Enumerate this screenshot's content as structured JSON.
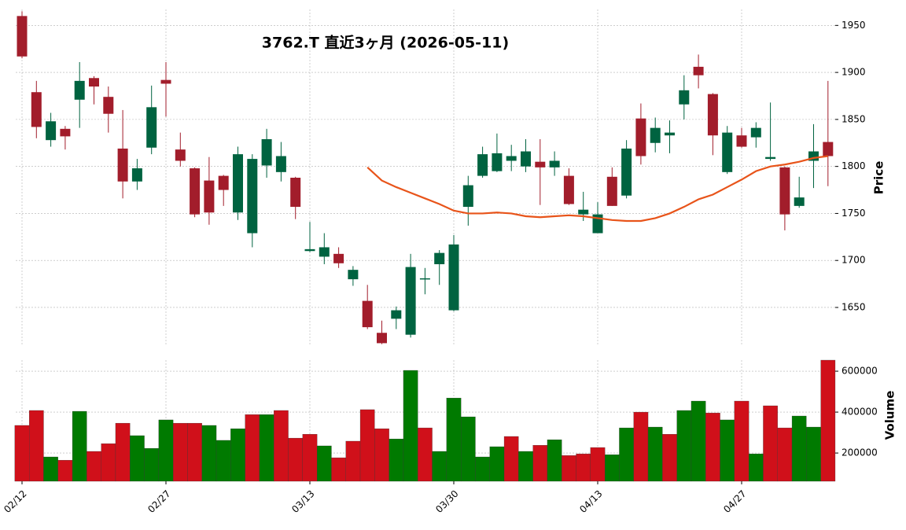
{
  "chart_data": {
    "type": "candlestick",
    "title": "3762.T  直近3ヶ月 (2026-05-11)",
    "y_label": "Price",
    "volume_label": "Volume",
    "categories": [
      "02/12",
      null,
      null,
      null,
      null,
      null,
      null,
      null,
      null,
      null,
      "02/27",
      null,
      null,
      null,
      null,
      null,
      null,
      null,
      null,
      null,
      "03/13",
      null,
      null,
      null,
      null,
      null,
      null,
      null,
      null,
      null,
      "03/30",
      null,
      null,
      null,
      null,
      null,
      null,
      null,
      null,
      null,
      "04/13",
      null,
      null,
      null,
      null,
      null,
      null,
      null,
      null,
      null,
      "04/27",
      null,
      null,
      null,
      null,
      null,
      null
    ],
    "open": [
      1960,
      1879,
      1828,
      1840,
      1871,
      1894,
      1874,
      1819,
      1784,
      1820,
      1892,
      1818,
      1798,
      1785,
      1790,
      1751,
      1729,
      1801,
      1794,
      1788,
      1710,
      1704,
      1707,
      1680,
      1657,
      1623,
      1638,
      1621,
      1680,
      1696,
      1647,
      1757,
      1790,
      1795,
      1806,
      1800,
      1805,
      1799,
      1790,
      1749,
      1729,
      1789,
      1769,
      1851,
      1825,
      1833,
      1866,
      1906,
      1877,
      1794,
      1833,
      1831,
      1808,
      1799,
      1758,
      1806,
      1826
    ],
    "high": [
      1965,
      1891,
      1857,
      1843,
      1911,
      1896,
      1885,
      1860,
      1808,
      1886,
      1911,
      1836,
      1799,
      1810,
      1791,
      1821,
      1813,
      1840,
      1826,
      1789,
      1741,
      1729,
      1714,
      1694,
      1674,
      1636,
      1651,
      1707,
      1692,
      1711,
      1727,
      1790,
      1821,
      1835,
      1823,
      1829,
      1829,
      1816,
      1798,
      1773,
      1762,
      1799,
      1828,
      1867,
      1852,
      1849,
      1897,
      1919,
      1878,
      1843,
      1841,
      1847,
      1868,
      1800,
      1789,
      1845,
      1891
    ],
    "low": [
      1915,
      1830,
      1821,
      1818,
      1841,
      1866,
      1836,
      1766,
      1775,
      1813,
      1853,
      1800,
      1746,
      1738,
      1758,
      1743,
      1714,
      1788,
      1784,
      1744,
      1709,
      1696,
      1692,
      1673,
      1627,
      1611,
      1627,
      1618,
      1664,
      1674,
      1646,
      1737,
      1788,
      1794,
      1795,
      1794,
      1759,
      1790,
      1759,
      1742,
      1729,
      1758,
      1766,
      1802,
      1815,
      1814,
      1850,
      1883,
      1812,
      1792,
      1820,
      1820,
      1806,
      1732,
      1756,
      1777,
      1779
    ],
    "close": [
      1917,
      1842,
      1848,
      1832,
      1891,
      1885,
      1856,
      1784,
      1798,
      1863,
      1888,
      1806,
      1749,
      1751,
      1775,
      1813,
      1808,
      1829,
      1811,
      1757,
      1712,
      1714,
      1697,
      1690,
      1629,
      1612,
      1647,
      1693,
      1681,
      1708,
      1717,
      1780,
      1813,
      1814,
      1811,
      1816,
      1799,
      1806,
      1760,
      1754,
      1749,
      1758,
      1819,
      1811,
      1841,
      1836,
      1881,
      1897,
      1833,
      1836,
      1821,
      1841,
      1810,
      1749,
      1767,
      1816,
      1811
    ],
    "up_color": "#006340",
    "down_color": "#a21d2b",
    "ma": {
      "color": "#e8541a",
      "values": [
        null,
        null,
        null,
        null,
        null,
        null,
        null,
        null,
        null,
        null,
        null,
        null,
        null,
        null,
        null,
        null,
        null,
        null,
        null,
        null,
        null,
        null,
        null,
        null,
        1799,
        1785,
        1778,
        1772,
        1766,
        1760,
        1753,
        1750,
        1750,
        1751,
        1750,
        1747,
        1746,
        1747,
        1748,
        1747,
        1745,
        1743,
        1742,
        1742,
        1745,
        1750,
        1757,
        1765,
        1770,
        1778,
        1786,
        1795,
        1800,
        1802,
        1805,
        1809,
        1811
      ]
    },
    "volume": {
      "values": [
        335000,
        408000,
        181000,
        165000,
        404000,
        208000,
        246000,
        346000,
        285000,
        223000,
        362000,
        346000,
        346000,
        335000,
        262000,
        319000,
        388000,
        388000,
        408000,
        273000,
        292000,
        235000,
        177000,
        258000,
        412000,
        319000,
        269000,
        604000,
        323000,
        208000,
        469000,
        377000,
        181000,
        231000,
        281000,
        208000,
        238000,
        265000,
        188000,
        196000,
        227000,
        192000,
        323000,
        400000,
        327000,
        292000,
        408000,
        454000,
        396000,
        362000,
        454000,
        196000,
        431000,
        323000,
        381000,
        327000,
        654000
      ],
      "colors": [
        "#d0101a",
        "#d0101a",
        "#007a00",
        "#d0101a",
        "#007a00",
        "#d0101a",
        "#d0101a",
        "#d0101a",
        "#007a00",
        "#007a00",
        "#007a00",
        "#d0101a",
        "#d0101a",
        "#007a00",
        "#007a00",
        "#007a00",
        "#d0101a",
        "#007a00",
        "#d0101a",
        "#d0101a",
        "#d0101a",
        "#007a00",
        "#d0101a",
        "#d0101a",
        "#d0101a",
        "#d0101a",
        "#007a00",
        "#007a00",
        "#d0101a",
        "#007a00",
        "#007a00",
        "#007a00",
        "#007a00",
        "#007a00",
        "#d0101a",
        "#007a00",
        "#d0101a",
        "#007a00",
        "#d0101a",
        "#d0101a",
        "#d0101a",
        "#007a00",
        "#007a00",
        "#d0101a",
        "#007a00",
        "#d0101a",
        "#007a00",
        "#007a00",
        "#d0101a",
        "#007a00",
        "#d0101a",
        "#007a00",
        "#d0101a",
        "#d0101a",
        "#007a00",
        "#007a00",
        "#d0101a"
      ]
    },
    "ylim": [
      1609,
      1967
    ],
    "yticks": [
      1650,
      1700,
      1750,
      1800,
      1850,
      1900,
      1950
    ],
    "volume_ylim": [
      62000,
      654000
    ],
    "volume_yticks": [
      200000,
      400000,
      600000
    ],
    "grid": true
  }
}
